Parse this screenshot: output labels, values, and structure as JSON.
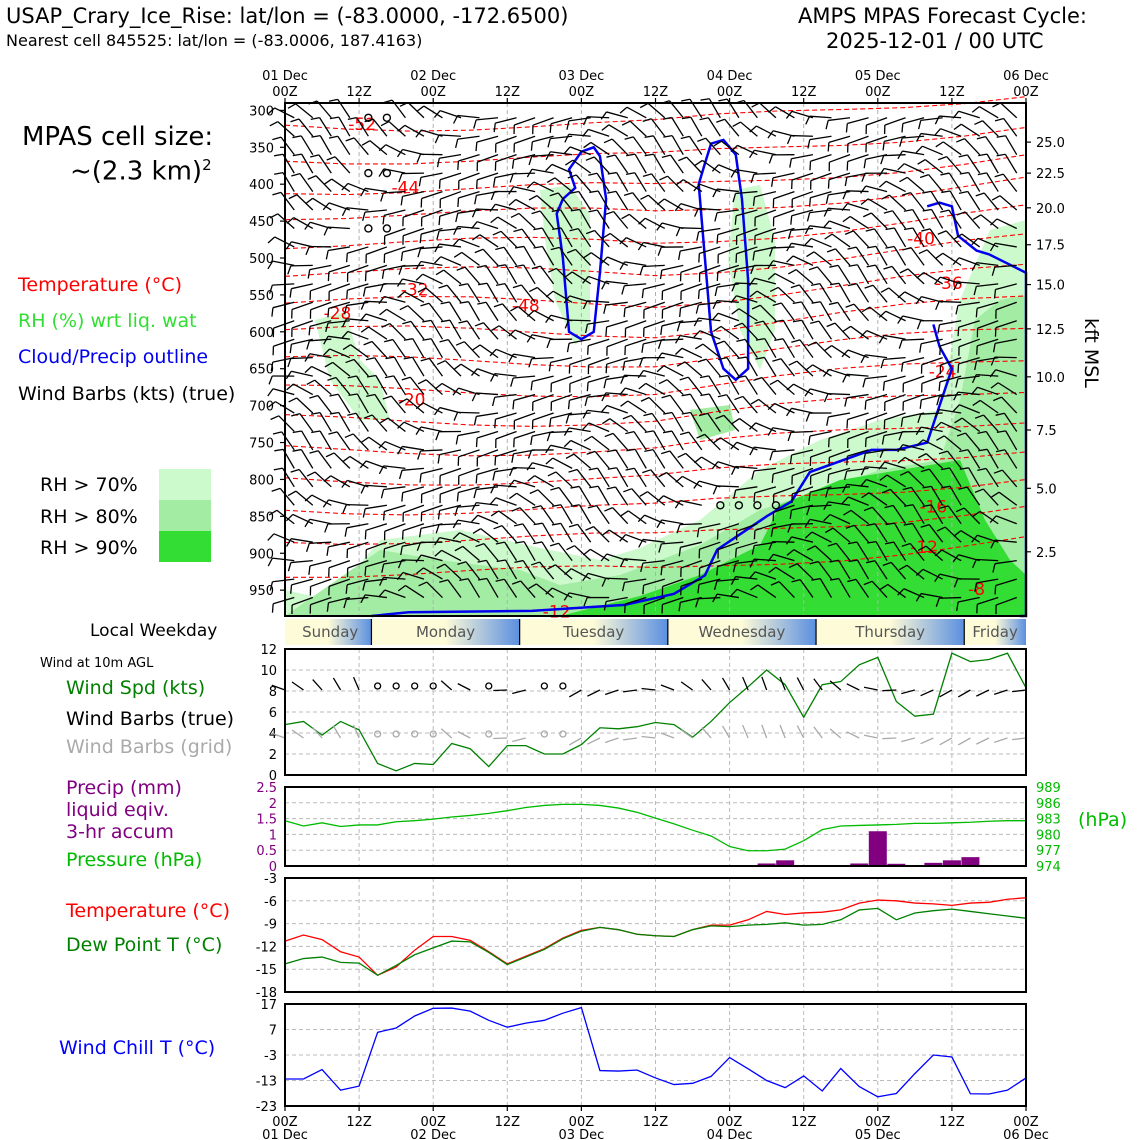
{
  "header": {
    "station": "USAP_Crary_Ice_Rise: lat/lon = (-83.0000, -172.6500)",
    "nearest": "Nearest cell 845525: lat/lon = (-83.0006, 187.4163)",
    "cycle_title": "AMPS MPAS Forecast Cycle:",
    "cycle_time": "2025-12-01 / 00 UTC"
  },
  "cell_size": {
    "line1": "MPAS cell size:",
    "line2": "~(2.3 km)",
    "exp": "2"
  },
  "legend": {
    "temperature": "Temperature (°C)",
    "rh": "RH (%) wrt liq. wat",
    "cloud": "Cloud/Precip outline",
    "wind": "Wind Barbs (kts) (true)",
    "rh70": "RH > 70%",
    "rh80": "RH > 80%",
    "rh90": "RH > 90%"
  },
  "colors": {
    "temperature": "#ff0000",
    "rh_label": "#33dd33",
    "cloud": "#0000ee",
    "rh70": "#ccfacc",
    "rh80": "#a3eca3",
    "rh90": "#33dd33",
    "wind_speed": "#008000",
    "wind_grid": "#aaaaaa",
    "precip": "#800080",
    "pressure": "#00bb00",
    "dewpoint": "#008000",
    "windchill": "#0000ff"
  },
  "chart_data": [
    {
      "type": "heatmap",
      "title": "Time-height cross section",
      "x_hours": [
        0,
        120
      ],
      "x_ticks_top": [
        {
          "hour": 0,
          "day": "01 Dec",
          "hh": "00Z"
        },
        {
          "hour": 12,
          "day": "",
          "hh": "12Z"
        },
        {
          "hour": 24,
          "day": "02 Dec",
          "hh": "00Z"
        },
        {
          "hour": 36,
          "day": "",
          "hh": "12Z"
        },
        {
          "hour": 48,
          "day": "03 Dec",
          "hh": "00Z"
        },
        {
          "hour": 60,
          "day": "",
          "hh": "12Z"
        },
        {
          "hour": 72,
          "day": "04 Dec",
          "hh": "00Z"
        },
        {
          "hour": 84,
          "day": "",
          "hh": "12Z"
        },
        {
          "hour": 96,
          "day": "05 Dec",
          "hh": "00Z"
        },
        {
          "hour": 108,
          "day": "",
          "hh": "12Z"
        },
        {
          "hour": 120,
          "day": "06 Dec",
          "hh": "00Z"
        }
      ],
      "ylabel_left": "hPa",
      "ylim": [
        290,
        985
      ],
      "y_ticks": [
        300,
        350,
        400,
        450,
        500,
        550,
        600,
        650,
        700,
        750,
        800,
        850,
        900,
        950
      ],
      "ylabel_right": "kft MSL",
      "y_right_ticks": [
        {
          "p": 343,
          "label": "25.0"
        },
        {
          "p": 385,
          "label": "22.5"
        },
        {
          "p": 432,
          "label": "20.0"
        },
        {
          "p": 482,
          "label": "17.5"
        },
        {
          "p": 536,
          "label": "15.0"
        },
        {
          "p": 596,
          "label": "12.5"
        },
        {
          "p": 661,
          "label": "10.0"
        },
        {
          "p": 733,
          "label": "7.5"
        },
        {
          "p": 812,
          "label": "5.0"
        },
        {
          "p": 898,
          "label": "2.5"
        }
      ],
      "temp_labels": [
        {
          "hour": 12.5,
          "p": 320,
          "text": "-52"
        },
        {
          "hour": 19.5,
          "p": 406,
          "text": "-44"
        },
        {
          "hour": 39,
          "p": 566,
          "text": "-48"
        },
        {
          "hour": 8.5,
          "p": 576,
          "text": "-28"
        },
        {
          "hour": 21,
          "p": 544,
          "text": "-32"
        },
        {
          "hour": 20.5,
          "p": 693,
          "text": "-20"
        },
        {
          "hour": 103,
          "p": 475,
          "text": "-40"
        },
        {
          "hour": 107.5,
          "p": 535,
          "text": "-36"
        },
        {
          "hour": 106.5,
          "p": 655,
          "text": "-24"
        },
        {
          "hour": 105,
          "p": 838,
          "text": "-16"
        },
        {
          "hour": 103.5,
          "p": 893,
          "text": "-12"
        },
        {
          "hour": 112,
          "p": 950,
          "text": "-8"
        },
        {
          "hour": 44,
          "p": 980,
          "text": "-12"
        }
      ],
      "cloud_outline_label": "Cloud/Precip outline"
    },
    {
      "type": "line",
      "title": "Wind at 10m AGL",
      "ylabel": "Wind Spd (kts)",
      "ylim": [
        0,
        12
      ],
      "y_ticks": [
        0,
        2,
        4,
        6,
        8,
        10,
        12
      ],
      "series": [
        {
          "name": "Wind Spd (kts)",
          "x": [
            0,
            3,
            6,
            9,
            12,
            15,
            18,
            21,
            24,
            27,
            30,
            33,
            36,
            39,
            42,
            45,
            48,
            51,
            54,
            57,
            60,
            63,
            66,
            69,
            72,
            75,
            78,
            81,
            84,
            87,
            90,
            93,
            96,
            99,
            102,
            105,
            108,
            111,
            114,
            117,
            120
          ],
          "values": [
            4.8,
            5.1,
            3.8,
            5.1,
            4.3,
            1.1,
            0.4,
            1.1,
            1.0,
            3.0,
            2.5,
            0.8,
            2.8,
            2.8,
            2.0,
            2.0,
            2.9,
            4.5,
            4.4,
            4.6,
            5.0,
            4.8,
            3.6,
            5.1,
            6.9,
            8.4,
            10.0,
            8.6,
            5.5,
            8.6,
            8.9,
            10.5,
            11.2,
            7.0,
            5.6,
            5.8,
            11.6,
            10.8,
            11.0,
            11.6,
            8.3
          ]
        }
      ],
      "barb_rows": [
        "Wind Barbs (true)",
        "Wind Barbs (grid)"
      ]
    },
    {
      "type": "bar",
      "title": "Precip and pressure",
      "ylabel": "Precip (mm)",
      "ylim": [
        0,
        2.5
      ],
      "y_ticks": [
        0,
        0.5,
        1.0,
        1.5,
        2.0,
        2.5
      ],
      "precip_hours": [
        78,
        81,
        93,
        96,
        99,
        105,
        108,
        111
      ],
      "precip_values": [
        0.08,
        0.18,
        0.08,
        1.1,
        0.07,
        0.1,
        0.18,
        0.28
      ],
      "pressure": {
        "name": "Pressure (hPa)",
        "ylim": [
          974,
          989
        ],
        "y_ticks": [
          974,
          977,
          980,
          983,
          986,
          989
        ],
        "x": [
          0,
          3,
          6,
          9,
          12,
          15,
          18,
          21,
          24,
          27,
          30,
          33,
          36,
          39,
          42,
          45,
          48,
          51,
          54,
          57,
          60,
          63,
          66,
          69,
          72,
          75,
          78,
          81,
          84,
          87,
          90,
          93,
          96,
          99,
          102,
          105,
          108,
          111,
          114,
          117,
          120
        ],
        "values": [
          982.6,
          981.6,
          982.2,
          981.5,
          981.8,
          981.8,
          982.4,
          982.6,
          982.9,
          983.3,
          983.6,
          984.0,
          984.5,
          985.1,
          985.5,
          985.7,
          985.7,
          985.5,
          985.0,
          984.2,
          983.1,
          982.0,
          980.8,
          979.7,
          977.7,
          976.9,
          976.9,
          977.2,
          978.8,
          980.9,
          981.6,
          981.7,
          981.8,
          981.9,
          982.1,
          982.1,
          982.2,
          982.3,
          982.5,
          982.6,
          982.6
        ]
      }
    },
    {
      "type": "line",
      "title": "Temperature and dew point",
      "ylim": [
        -18,
        -3
      ],
      "y_ticks": [
        -3,
        -6,
        -9,
        -12,
        -15,
        -18
      ],
      "series": [
        {
          "name": "Temperature (°C)",
          "x": [
            0,
            3,
            6,
            9,
            12,
            15,
            18,
            21,
            24,
            27,
            30,
            33,
            36,
            39,
            42,
            45,
            48,
            51,
            54,
            57,
            60,
            63,
            66,
            69,
            72,
            75,
            78,
            81,
            84,
            87,
            90,
            93,
            96,
            99,
            102,
            105,
            108,
            111,
            114,
            117,
            120
          ],
          "values": [
            -11.3,
            -10.5,
            -11.1,
            -12.7,
            -13.4,
            -15.8,
            -14.7,
            -12.5,
            -10.7,
            -10.7,
            -11.2,
            -12.7,
            -14.3,
            -13.3,
            -12.3,
            -10.9,
            -9.9,
            -9.5,
            -9.8,
            -10.4,
            -10.6,
            -10.7,
            -9.8,
            -9.2,
            -9.2,
            -8.5,
            -7.4,
            -7.8,
            -7.6,
            -7.5,
            -7.2,
            -6.3,
            -5.9,
            -6.0,
            -6.3,
            -6.4,
            -6.6,
            -6.3,
            -6.2,
            -5.8,
            -5.6
          ]
        },
        {
          "name": "Dew Point T (°C)",
          "x": [
            0,
            3,
            6,
            9,
            12,
            15,
            18,
            21,
            24,
            27,
            30,
            33,
            36,
            39,
            42,
            45,
            48,
            51,
            54,
            57,
            60,
            63,
            66,
            69,
            72,
            75,
            78,
            81,
            84,
            87,
            90,
            93,
            96,
            99,
            102,
            105,
            108,
            111,
            114,
            117,
            120
          ],
          "values": [
            -14.3,
            -13.6,
            -13.4,
            -14.1,
            -14.2,
            -15.8,
            -14.5,
            -13.1,
            -12.2,
            -11.3,
            -11.4,
            -12.8,
            -14.4,
            -13.4,
            -12.4,
            -11.0,
            -10.0,
            -9.5,
            -9.8,
            -10.4,
            -10.6,
            -10.7,
            -9.8,
            -9.3,
            -9.4,
            -9.2,
            -9.1,
            -8.9,
            -9.2,
            -9.1,
            -8.5,
            -7.2,
            -7.0,
            -8.5,
            -7.6,
            -7.3,
            -7.1,
            -7.4,
            -7.7,
            -8.0,
            -8.3
          ]
        }
      ]
    },
    {
      "type": "line",
      "title": "Wind chill",
      "ylim": [
        -23,
        17
      ],
      "y_ticks": [
        17,
        7,
        -3,
        -13,
        -23
      ],
      "series": [
        {
          "name": "Wind Chill T (°C)",
          "x": [
            0,
            3,
            6,
            9,
            12,
            15,
            18,
            21,
            24,
            27,
            30,
            33,
            36,
            39,
            42,
            45,
            48,
            51,
            54,
            57,
            60,
            63,
            66,
            69,
            72,
            75,
            78,
            81,
            84,
            87,
            90,
            93,
            96,
            99,
            102,
            105,
            108,
            111,
            114,
            117,
            120
          ],
          "values": [
            -12.4,
            -12.4,
            -8.7,
            -16.8,
            -15.2,
            5.9,
            7.6,
            12.3,
            15.3,
            15.4,
            14.2,
            10.6,
            7.9,
            9.5,
            10.6,
            13.4,
            15.6,
            -9.1,
            -9.3,
            -8.9,
            -12.0,
            -14.6,
            -14.1,
            -11.4,
            -4.0,
            -8.4,
            -13.0,
            -15.8,
            -11.2,
            -17.1,
            -8.3,
            -15.4,
            -19.4,
            -18.1,
            -10.3,
            -3.0,
            -3.8,
            -18.2,
            -18.3,
            -16.8,
            -12.0
          ]
        }
      ]
    }
  ],
  "weekday_bar": {
    "label": "Local Weekday",
    "days": [
      "Sunday",
      "Monday",
      "Tuesday",
      "Wednesday",
      "Thursday",
      "Friday"
    ]
  },
  "panel_labels": {
    "wind_title": "Wind at 10m AGL",
    "wind_spd": "Wind Spd (kts)",
    "wind_true": "Wind Barbs (true)",
    "wind_grid": "Wind Barbs (grid)",
    "precip1": "Precip (mm)",
    "precip2": "liquid eqiv.",
    "precip3": "3-hr accum",
    "pressure": "Pressure (hPa)",
    "pressure_unit": "(hPa)",
    "temp": "Temperature (°C)",
    "dew": "Dew Point T (°C)",
    "chill": "Wind Chill T (°C)"
  },
  "bottom_axis": [
    {
      "hh": "00Z",
      "day": "01 Dec"
    },
    {
      "hh": "12Z",
      "day": ""
    },
    {
      "hh": "00Z",
      "day": "02 Dec"
    },
    {
      "hh": "12Z",
      "day": ""
    },
    {
      "hh": "00Z",
      "day": "03 Dec"
    },
    {
      "hh": "12Z",
      "day": ""
    },
    {
      "hh": "00Z",
      "day": "04 Dec"
    },
    {
      "hh": "12Z",
      "day": ""
    },
    {
      "hh": "00Z",
      "day": "05 Dec"
    },
    {
      "hh": "12Z",
      "day": ""
    },
    {
      "hh": "00Z",
      "day": "06 Dec"
    }
  ]
}
